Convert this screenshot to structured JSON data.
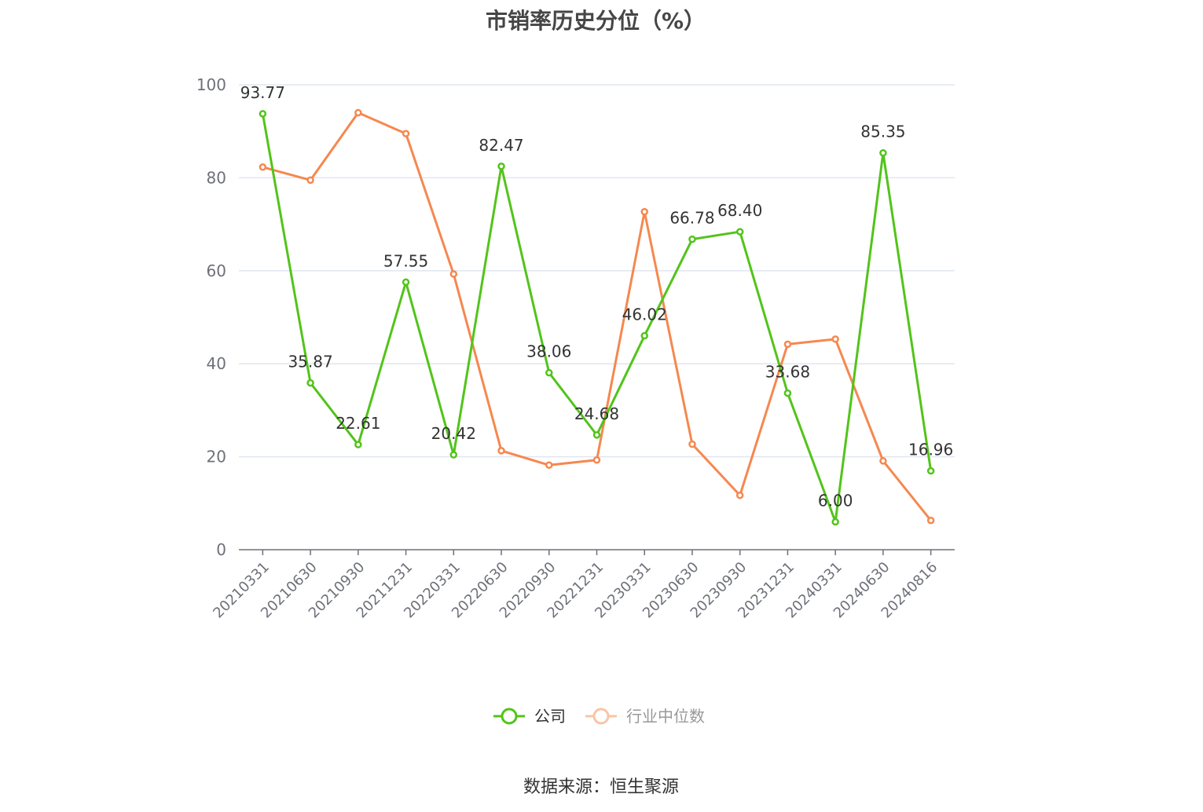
{
  "chart_data": {
    "type": "line",
    "title": "市销率历史分位（%）",
    "categories": [
      "20210331",
      "20210630",
      "20210930",
      "20211231",
      "20220331",
      "20220630",
      "20220930",
      "20221231",
      "20230331",
      "20230630",
      "20230930",
      "20231231",
      "20240331",
      "20240630",
      "20240816"
    ],
    "series": [
      {
        "name": "公司",
        "color": "#52c41a",
        "values": [
          93.77,
          35.87,
          22.61,
          57.55,
          20.42,
          82.47,
          38.06,
          24.68,
          46.02,
          66.78,
          68.4,
          33.68,
          6.0,
          85.35,
          16.96
        ],
        "labels": [
          "93.77",
          "35.87",
          "22.61",
          "57.55",
          "20.42",
          "82.47",
          "38.06",
          "24.68",
          "46.02",
          "66.78",
          "68.40",
          "33.68",
          "6.00",
          "85.35",
          "16.96"
        ]
      },
      {
        "name": "行业中位数",
        "color": "#f5884f",
        "values": [
          82.3,
          79.5,
          94.0,
          89.5,
          59.3,
          21.3,
          18.2,
          19.3,
          72.7,
          22.7,
          11.7,
          44.2,
          45.3,
          19.1,
          6.3
        ]
      }
    ],
    "ylim": [
      0,
      100
    ],
    "yticks": [
      "0",
      "20",
      "40",
      "60",
      "80",
      "100"
    ],
    "grid": true,
    "legend": "bottom-center"
  },
  "legend": {
    "company_label": "公司",
    "industry_label": "行业中位数"
  },
  "source": "数据来源：恒生聚源"
}
